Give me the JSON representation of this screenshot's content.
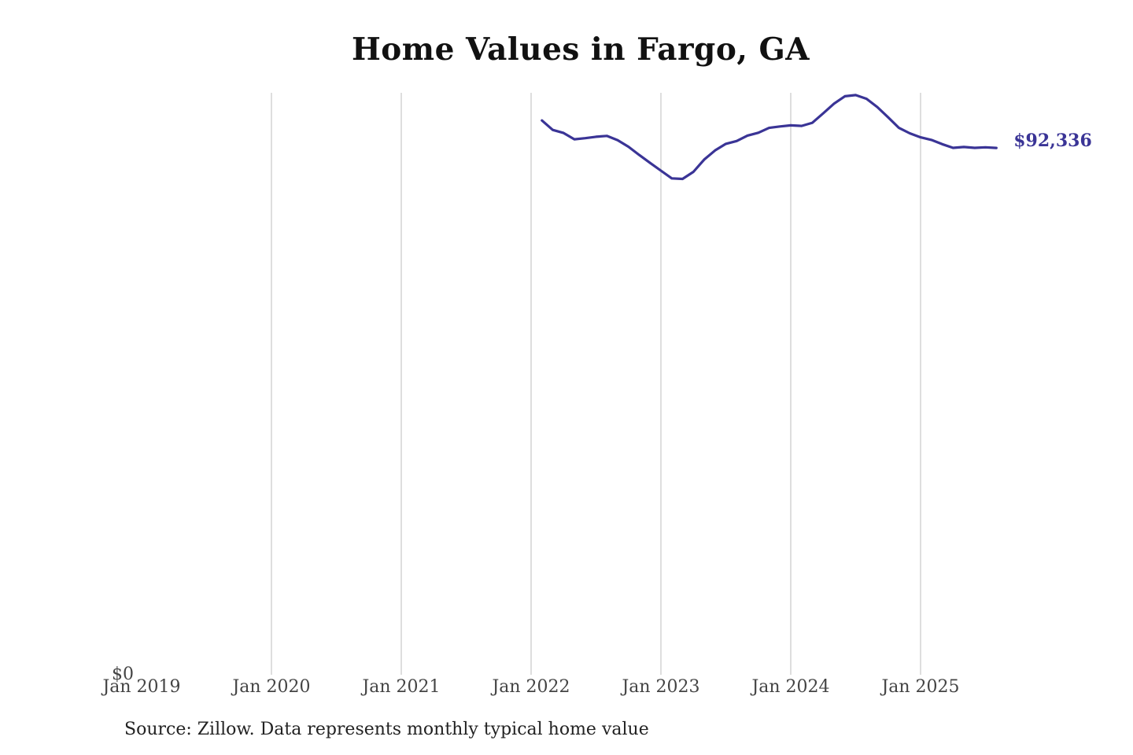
{
  "chart_data": {
    "type": "line",
    "title": "Home Values in Fargo, GA",
    "xlabel": "",
    "ylabel": "",
    "source": "Source: Zillow. Data represents monthly typical home value",
    "x_tick_labels": [
      "Jan 2019",
      "Jan 2020",
      "Jan 2021",
      "Jan 2022",
      "Jan 2023",
      "Jan 2024",
      "Jan 2025"
    ],
    "x_ticks": [
      "2019-01",
      "2020-01",
      "2021-01",
      "2022-01",
      "2023-01",
      "2024-01",
      "2025-01"
    ],
    "y_tick_labels": [
      "$0"
    ],
    "y_ticks": [
      0
    ],
    "xlim": [
      "2019-01",
      "2025-08"
    ],
    "ylim": [
      0,
      102000
    ],
    "grid": "vertical",
    "line_color": "#3a3496",
    "end_label": "$92,336",
    "series": [
      {
        "x": [
          "2022-02",
          "2022-03",
          "2022-04",
          "2022-05",
          "2022-06",
          "2022-07",
          "2022-08",
          "2022-09",
          "2022-10",
          "2022-11",
          "2022-12",
          "2023-01",
          "2023-02",
          "2023-03",
          "2023-04",
          "2023-05",
          "2023-06",
          "2023-07",
          "2023-08",
          "2023-09",
          "2023-10",
          "2023-11",
          "2023-12",
          "2024-01",
          "2024-02",
          "2024-03",
          "2024-04",
          "2024-05",
          "2024-06",
          "2024-07",
          "2024-08",
          "2024-09",
          "2024-10",
          "2024-11",
          "2024-12",
          "2025-01",
          "2025-02",
          "2025-03",
          "2025-04",
          "2025-05",
          "2025-06",
          "2025-07",
          "2025-08"
        ],
        "values": [
          97150,
          95500,
          94950,
          93850,
          94050,
          94300,
          94450,
          93700,
          92550,
          91100,
          89700,
          88350,
          87000,
          86900,
          88150,
          90300,
          91900,
          93050,
          93550,
          94500,
          95000,
          95850,
          96100,
          96300,
          96200,
          96750,
          98400,
          100100,
          101400,
          101600,
          100950,
          99500,
          97700,
          95850,
          94900,
          94200,
          93750,
          93000,
          92350,
          92500,
          92350,
          92450,
          92336
        ]
      }
    ]
  }
}
